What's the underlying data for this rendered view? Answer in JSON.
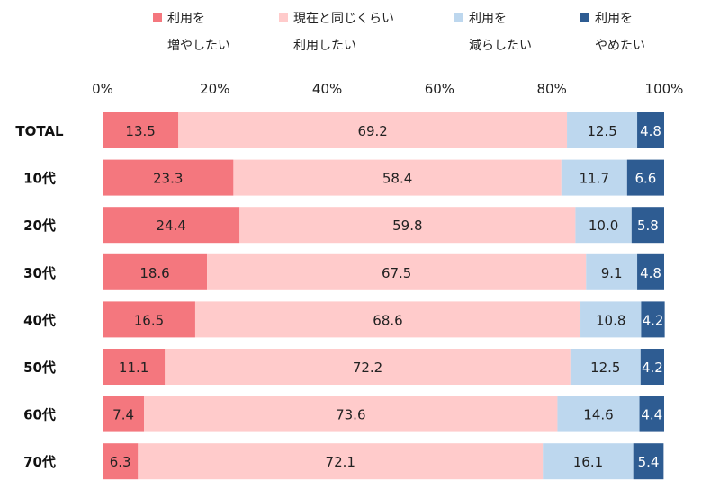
{
  "chart_data": {
    "type": "bar",
    "orientation": "horizontal",
    "stacked": true,
    "categories": [
      "TOTAL",
      "10代",
      "20代",
      "30代",
      "40代",
      "50代",
      "60代",
      "70代"
    ],
    "series": [
      {
        "name": "利用を増やしたい",
        "name_lines": [
          "利用を",
          "増やしたい"
        ],
        "color": "#F4777E",
        "values": [
          13.5,
          23.3,
          24.4,
          18.6,
          16.5,
          11.1,
          7.4,
          6.3
        ]
      },
      {
        "name": "現在と同じくらい利用したい",
        "name_lines": [
          "現在と同じくらい",
          "利用したい"
        ],
        "color": "#FFCBCB",
        "values": [
          69.2,
          58.4,
          59.8,
          67.5,
          68.6,
          72.2,
          73.6,
          72.1
        ]
      },
      {
        "name": "利用を減らしたい",
        "name_lines": [
          "利用を",
          "減らしたい"
        ],
        "color": "#BDD7EE",
        "values": [
          12.5,
          11.7,
          10.0,
          9.1,
          10.8,
          12.5,
          14.6,
          16.1
        ]
      },
      {
        "name": "利用をやめたい",
        "name_lines": [
          "利用を",
          "やめたい"
        ],
        "color": "#2E5C92",
        "values": [
          4.8,
          6.6,
          5.8,
          4.8,
          4.2,
          4.2,
          4.4,
          5.4
        ]
      }
    ],
    "xlim": [
      0,
      100
    ],
    "x_ticks": [
      "0%",
      "20%",
      "40%",
      "60%",
      "80%",
      "100%"
    ],
    "legend_position": "top",
    "grid": false
  }
}
